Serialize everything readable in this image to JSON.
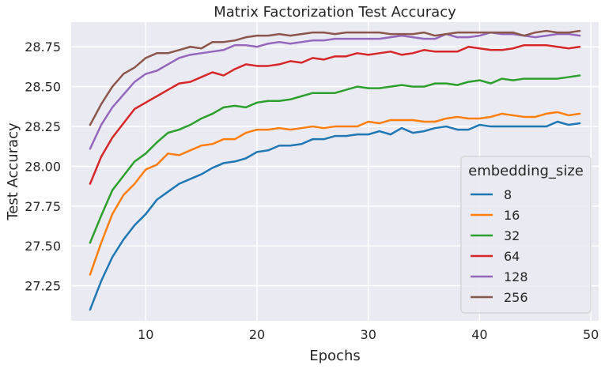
{
  "chart_data": {
    "type": "line",
    "title": "Matrix Factorization Test Accuracy",
    "xlabel": "Epochs",
    "ylabel": "Test Accuracy",
    "xlim": [
      3.3,
      50.7
    ],
    "ylim": [
      27.03,
      28.905
    ],
    "xticks": [
      10,
      20,
      30,
      40,
      50
    ],
    "yticks": [
      27.25,
      27.5,
      27.75,
      28.0,
      28.25,
      28.5,
      28.75
    ],
    "ytick_labels": [
      "27.25",
      "27.50",
      "27.75",
      "28.00",
      "28.25",
      "28.50",
      "28.75"
    ],
    "grid": true,
    "legend": {
      "title": "embedding_size",
      "placement": "lower-right"
    },
    "x": [
      5,
      6,
      7,
      8,
      9,
      10,
      11,
      12,
      13,
      14,
      15,
      16,
      17,
      18,
      19,
      20,
      21,
      22,
      23,
      24,
      25,
      26,
      27,
      28,
      29,
      30,
      31,
      32,
      33,
      34,
      35,
      36,
      37,
      38,
      39,
      40,
      41,
      42,
      43,
      44,
      45,
      46,
      47,
      48,
      49
    ],
    "series": [
      {
        "name": "8",
        "color": "#1f77b4",
        "values": [
          27.1,
          27.28,
          27.43,
          27.54,
          27.63,
          27.7,
          27.79,
          27.84,
          27.89,
          27.92,
          27.95,
          27.99,
          28.02,
          28.03,
          28.05,
          28.09,
          28.1,
          28.13,
          28.13,
          28.14,
          28.17,
          28.17,
          28.19,
          28.19,
          28.2,
          28.2,
          28.22,
          28.2,
          28.24,
          28.21,
          28.22,
          28.24,
          28.25,
          28.23,
          28.23,
          28.26,
          28.25,
          28.25,
          28.25,
          28.25,
          28.25,
          28.25,
          28.28,
          28.26,
          28.27
        ]
      },
      {
        "name": "16",
        "color": "#ff7f0e",
        "values": [
          27.32,
          27.52,
          27.7,
          27.82,
          27.89,
          27.98,
          28.01,
          28.08,
          28.07,
          28.1,
          28.13,
          28.14,
          28.17,
          28.17,
          28.21,
          28.23,
          28.23,
          28.24,
          28.23,
          28.24,
          28.25,
          28.24,
          28.25,
          28.25,
          28.25,
          28.28,
          28.27,
          28.29,
          28.29,
          28.29,
          28.28,
          28.28,
          28.3,
          28.31,
          28.3,
          28.3,
          28.31,
          28.33,
          28.32,
          28.31,
          28.31,
          28.33,
          28.34,
          28.32,
          28.33
        ]
      },
      {
        "name": "32",
        "color": "#2ca02c",
        "values": [
          27.52,
          27.69,
          27.85,
          27.94,
          28.03,
          28.08,
          28.15,
          28.21,
          28.23,
          28.26,
          28.3,
          28.33,
          28.37,
          28.38,
          28.37,
          28.4,
          28.41,
          28.41,
          28.42,
          28.44,
          28.46,
          28.46,
          28.46,
          28.48,
          28.5,
          28.49,
          28.49,
          28.5,
          28.51,
          28.5,
          28.5,
          28.52,
          28.52,
          28.51,
          28.53,
          28.54,
          28.52,
          28.55,
          28.54,
          28.55,
          28.55,
          28.55,
          28.55,
          28.56,
          28.57
        ]
      },
      {
        "name": "64",
        "color": "#d62728",
        "values": [
          27.89,
          28.06,
          28.18,
          28.27,
          28.36,
          28.4,
          28.44,
          28.48,
          28.52,
          28.53,
          28.56,
          28.59,
          28.57,
          28.61,
          28.64,
          28.63,
          28.63,
          28.64,
          28.66,
          28.65,
          28.68,
          28.67,
          28.69,
          28.69,
          28.71,
          28.7,
          28.71,
          28.72,
          28.7,
          28.71,
          28.73,
          28.72,
          28.72,
          28.72,
          28.75,
          28.74,
          28.73,
          28.73,
          28.74,
          28.76,
          28.76,
          28.76,
          28.75,
          28.74,
          28.75
        ]
      },
      {
        "name": "128",
        "color": "#9467bd",
        "values": [
          28.11,
          28.26,
          28.37,
          28.45,
          28.53,
          28.58,
          28.6,
          28.64,
          28.68,
          28.7,
          28.71,
          28.72,
          28.73,
          28.76,
          28.76,
          28.75,
          28.77,
          28.78,
          28.77,
          28.78,
          28.79,
          28.79,
          28.8,
          28.8,
          28.8,
          28.8,
          28.8,
          28.81,
          28.82,
          28.81,
          28.8,
          28.8,
          28.83,
          28.81,
          28.81,
          28.82,
          28.84,
          28.83,
          28.83,
          28.82,
          28.81,
          28.82,
          28.83,
          28.83,
          28.82
        ]
      },
      {
        "name": "256",
        "color": "#8c564b",
        "values": [
          28.26,
          28.39,
          28.5,
          28.58,
          28.62,
          28.68,
          28.71,
          28.71,
          28.73,
          28.75,
          28.74,
          28.78,
          28.78,
          28.79,
          28.81,
          28.82,
          28.82,
          28.83,
          28.82,
          28.83,
          28.84,
          28.84,
          28.83,
          28.84,
          28.84,
          28.84,
          28.84,
          28.83,
          28.83,
          28.83,
          28.84,
          28.82,
          28.83,
          28.84,
          28.84,
          28.84,
          28.84,
          28.84,
          28.84,
          28.82,
          28.84,
          28.85,
          28.84,
          28.84,
          28.85
        ]
      }
    ]
  }
}
